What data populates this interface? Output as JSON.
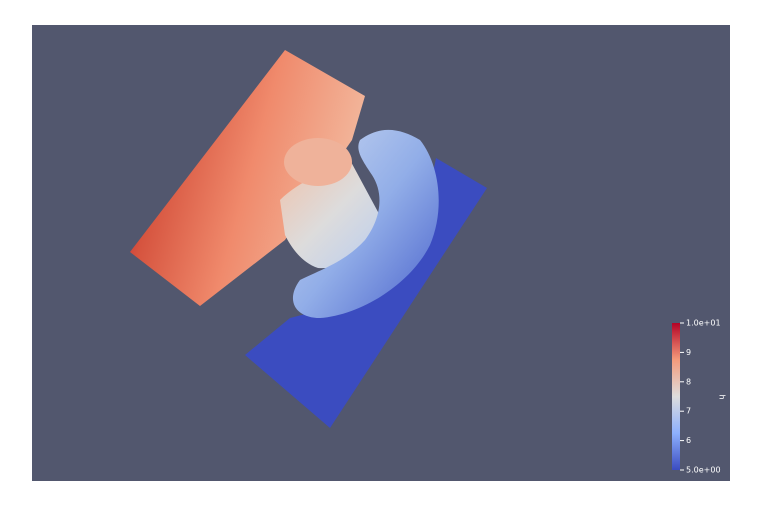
{
  "colorbar": {
    "title": "h",
    "range": [
      5,
      10
    ],
    "ticks": [
      {
        "value": 5,
        "label": "5.0e+00"
      },
      6,
      7,
      8,
      9,
      {
        "value": 10,
        "label": "1.0e+01"
      }
    ]
  }
}
